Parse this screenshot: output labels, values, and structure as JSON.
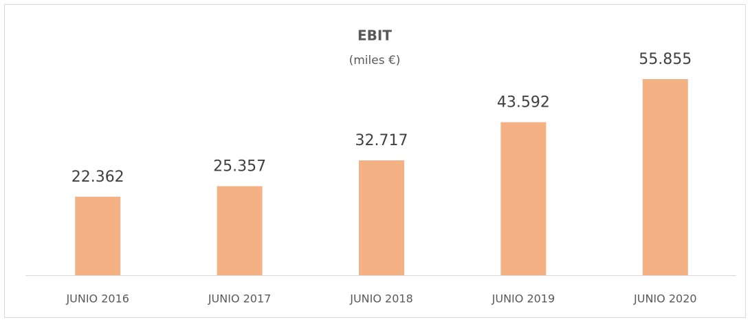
{
  "chart_data": {
    "type": "bar",
    "title": "EBIT",
    "subtitle": "(miles €)",
    "categories": [
      "JUNIO 2016",
      "JUNIO 2017",
      "JUNIO 2018",
      "JUNIO 2019",
      "JUNIO 2020"
    ],
    "values": [
      22362,
      25357,
      32717,
      43592,
      55855
    ],
    "value_labels": [
      "22.362",
      "25.357",
      "32.717",
      "43.592",
      "55.855"
    ],
    "color": "#f4b183"
  }
}
